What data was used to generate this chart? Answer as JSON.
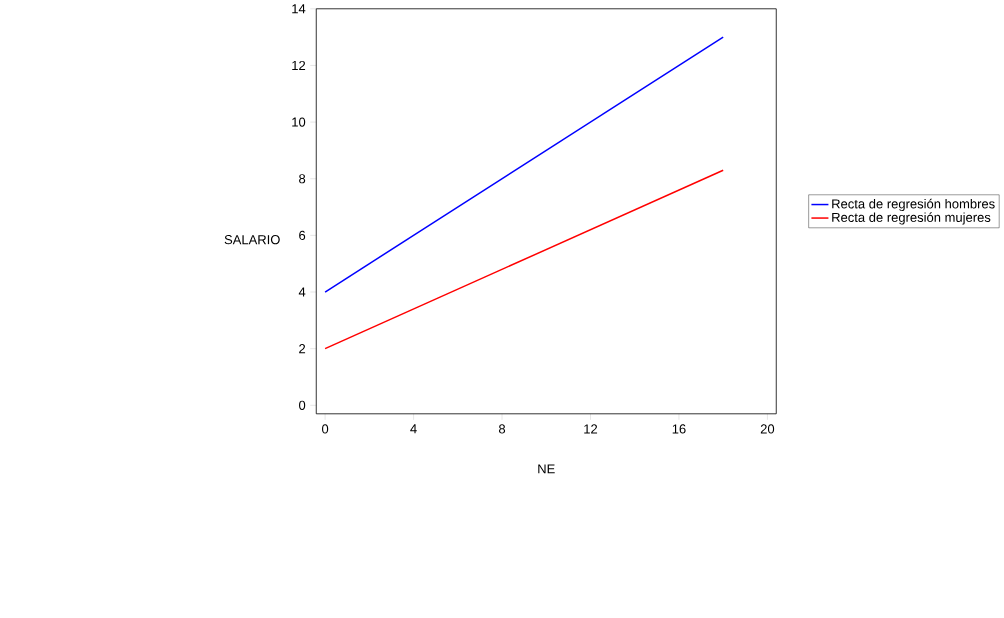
{
  "chart_data": {
    "type": "line",
    "xlabel": "NE",
    "ylabel": "SALARIO",
    "x": [
      0,
      18
    ],
    "series": [
      {
        "name": "Recta de regresión hombres",
        "color": "#0000ff",
        "values": [
          4,
          13
        ]
      },
      {
        "name": "Recta de regresión mujeres",
        "color": "#ff0000",
        "values": [
          2,
          8.3
        ]
      }
    ],
    "xlim": [
      -0.4,
      20.4
    ],
    "ylim": [
      -0.3,
      14
    ],
    "xticks": [
      0,
      4,
      8,
      12,
      16,
      20
    ],
    "yticks": [
      0,
      2,
      4,
      6,
      8,
      10,
      12,
      14
    ],
    "grid": false,
    "legend": "right",
    "marker": "none",
    "line_style": "solid"
  }
}
